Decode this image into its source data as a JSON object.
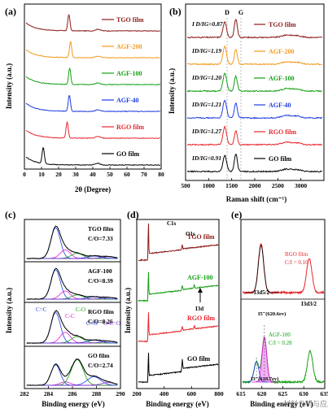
{
  "figure": {
    "panels": [
      {
        "letter": "(a)",
        "type": "xrd",
        "xlabel": "2θ (Degree)",
        "ylabel": "Intensity (a.u.)",
        "xlim": [
          0,
          80
        ],
        "xticks": [
          0,
          10,
          20,
          30,
          40,
          50,
          60,
          70,
          80
        ],
        "curves": [
          {
            "name": "TGO film",
            "color": "#8b1a1a",
            "peak": 26.0
          },
          {
            "name": "AGF-200",
            "color": "#f29a1b",
            "peak": 27.0
          },
          {
            "name": "AGF-100",
            "color": "#14a014",
            "peak": 26.5
          },
          {
            "name": "AGF-40",
            "color": "#1f3de0",
            "peak": 26.3
          },
          {
            "name": "RGO film",
            "color": "#e8262c",
            "peak": 25.0
          },
          {
            "name": "GO film",
            "color": "#000000",
            "peak": 11.0
          }
        ]
      },
      {
        "letter": "(b)",
        "type": "raman",
        "xlabel": "Raman shift (cm⁻¹)",
        "ylabel": "Intensity (a.u.)",
        "xlim": [
          500,
          3500
        ],
        "xticks": [
          500,
          1000,
          1500,
          2000,
          2500,
          3000
        ],
        "peak_labels": [
          "D",
          "G"
        ],
        "curves": [
          {
            "name": "TGO film",
            "ratio": "I D/IG=0.87",
            "color": "#8b1a1a"
          },
          {
            "name": "AGF-200",
            "ratio": "ID/IG=1.19",
            "color": "#f29a1b"
          },
          {
            "name": "AGF-100",
            "ratio": "ID/IG=1.20",
            "color": "#14a014"
          },
          {
            "name": "AGF-40",
            "ratio": "ID/IG=1.21",
            "color": "#1f3de0"
          },
          {
            "name": "RGO film",
            "ratio": "ID/IG=1.27",
            "color": "#e8262c"
          },
          {
            "name": "GO film",
            "ratio": "ID/IG=0.91",
            "color": "#000000"
          }
        ]
      },
      {
        "letter": "(c)",
        "type": "xps_c1s",
        "xlabel": "Binding energy (eV)",
        "ylabel": "Intensity (a.u.)",
        "xlim": [
          282,
          290
        ],
        "xticks": [
          282,
          284,
          286,
          288,
          290
        ],
        "subplots": [
          {
            "name": "TGO film",
            "ratio": "C/O=7.33"
          },
          {
            "name": "AGF-100",
            "ratio": "C/O=8.39"
          },
          {
            "name": "RGO film",
            "ratio": "C/O=8.26"
          },
          {
            "name": "GO film",
            "ratio": "C/O=2.74"
          }
        ],
        "component_labels": [
          "C=C",
          "C-C",
          "C-O",
          "C=O",
          "O-C=O"
        ]
      },
      {
        "letter": "(d)",
        "type": "xps_survey",
        "xlabel": "Binding energy (eV)",
        "ylabel": "Intensity (a.u.)",
        "xlim": [
          200,
          800
        ],
        "xticks": [
          200,
          400,
          600,
          800
        ],
        "peak_labels": [
          "C1s",
          "O1s",
          "I3d"
        ],
        "curves": [
          {
            "name": "TGO film",
            "color": "#8b1a1a"
          },
          {
            "name": "AGF-100",
            "color": "#14a014"
          },
          {
            "name": "RGO film",
            "color": "#e8262c"
          },
          {
            "name": "GO film",
            "color": "#000000"
          }
        ]
      },
      {
        "letter": "(e)",
        "type": "xps_i3d",
        "xlabel": "Binding energy (eV)",
        "xlim": [
          615,
          635
        ],
        "xticks": [
          615,
          620,
          625,
          630,
          635
        ],
        "top": {
          "name": "RGO film",
          "ratio": "C/I = 0.10",
          "label": "I3d5/2",
          "color": "#e8262c"
        },
        "bottom": {
          "name": "AGF-100",
          "ratio": "C/I = 0.28",
          "label": "I3d3/2",
          "color": "#14a014",
          "i5": "I5⁻(620.6ev)",
          "i3": "I3⁻(618.7ev)"
        }
      }
    ],
    "watermark": "材料分析与应用"
  },
  "chart_data": [
    {
      "type": "line",
      "title": "",
      "xlabel": "2θ (Degree)",
      "ylabel": "Intensity (a.u.)",
      "xlim": [
        0,
        80
      ],
      "series": [
        {
          "name": "TGO film",
          "x": [
            5,
            24,
            26,
            28,
            80
          ],
          "y": [
            0.05,
            0.2,
            1.0,
            0.2,
            0.02
          ]
        },
        {
          "name": "AGF-200",
          "x": [
            5,
            25,
            27,
            29,
            80
          ],
          "y": [
            0.05,
            0.2,
            1.0,
            0.2,
            0.02
          ]
        },
        {
          "name": "AGF-100",
          "x": [
            5,
            24.5,
            26.5,
            28.5,
            80
          ],
          "y": [
            0.05,
            0.2,
            1.0,
            0.2,
            0.02
          ]
        },
        {
          "name": "AGF-40",
          "x": [
            5,
            24.3,
            26.3,
            28.3,
            80
          ],
          "y": [
            0.05,
            0.2,
            1.0,
            0.2,
            0.02
          ]
        },
        {
          "name": "RGO film",
          "x": [
            5,
            22,
            25,
            28,
            80
          ],
          "y": [
            0.05,
            0.3,
            1.0,
            0.3,
            0.02
          ]
        },
        {
          "name": "GO film",
          "x": [
            5,
            10,
            11,
            12,
            80
          ],
          "y": [
            0.05,
            0.2,
            1.0,
            0.2,
            0.02
          ]
        }
      ]
    },
    {
      "type": "line",
      "title": "",
      "xlabel": "Raman shift (cm⁻¹)",
      "ylabel": "Intensity (a.u.)",
      "xlim": [
        500,
        3500
      ],
      "series": [
        {
          "name": "TGO film",
          "x": [
            500,
            1350,
            1590,
            2700,
            3300
          ],
          "y": [
            0.05,
            0.85,
            1.0,
            0.15,
            0.05
          ]
        },
        {
          "name": "AGF-200",
          "x": [
            500,
            1350,
            1590,
            2700,
            3300
          ],
          "y": [
            0.05,
            1.0,
            0.85,
            0.15,
            0.05
          ]
        },
        {
          "name": "AGF-100",
          "x": [
            500,
            1350,
            1590,
            2700,
            3300
          ],
          "y": [
            0.05,
            1.0,
            0.85,
            0.15,
            0.05
          ]
        },
        {
          "name": "AGF-40",
          "x": [
            500,
            1350,
            1590,
            2700,
            3300
          ],
          "y": [
            0.05,
            1.0,
            0.83,
            0.15,
            0.05
          ]
        },
        {
          "name": "RGO film",
          "x": [
            500,
            1350,
            1590,
            2700,
            3300
          ],
          "y": [
            0.05,
            1.0,
            0.8,
            0.15,
            0.05
          ]
        },
        {
          "name": "GO film",
          "x": [
            500,
            1350,
            1590,
            2700,
            3300
          ],
          "y": [
            0.05,
            0.9,
            1.0,
            0.15,
            0.05
          ]
        }
      ]
    },
    {
      "type": "line",
      "title": "",
      "xlabel": "Binding energy (eV)",
      "ylabel": "Intensity (a.u.)",
      "xlim": [
        282,
        290
      ],
      "series": [
        {
          "name": "TGO film",
          "x": [
            282,
            284.6,
            286,
            288,
            290
          ],
          "y": [
            0.05,
            1.0,
            0.25,
            0.08,
            0.05
          ]
        },
        {
          "name": "AGF-100",
          "x": [
            282,
            284.6,
            286,
            288,
            290
          ],
          "y": [
            0.05,
            1.0,
            0.25,
            0.08,
            0.05
          ]
        },
        {
          "name": "RGO film",
          "x": [
            282,
            284.6,
            286,
            288,
            290
          ],
          "y": [
            0.05,
            1.0,
            0.3,
            0.1,
            0.05
          ]
        },
        {
          "name": "GO film",
          "x": [
            282,
            284.8,
            286.9,
            288.5,
            290
          ],
          "y": [
            0.05,
            0.9,
            1.0,
            0.3,
            0.05
          ]
        }
      ]
    },
    {
      "type": "line",
      "title": "",
      "xlabel": "Binding energy (eV)",
      "ylabel": "Intensity (a.u.)",
      "xlim": [
        200,
        800
      ],
      "series": [
        {
          "name": "TGO film",
          "x": [
            200,
            285,
            532,
            800
          ],
          "y": [
            0.05,
            1.0,
            0.2,
            0.3
          ]
        },
        {
          "name": "AGF-100",
          "x": [
            200,
            285,
            532,
            620,
            800
          ],
          "y": [
            0.05,
            1.0,
            0.2,
            0.1,
            0.3
          ]
        },
        {
          "name": "RGO film",
          "x": [
            200,
            285,
            532,
            620,
            800
          ],
          "y": [
            0.05,
            1.0,
            0.2,
            0.1,
            0.3
          ]
        },
        {
          "name": "GO film",
          "x": [
            200,
            285,
            532,
            800
          ],
          "y": [
            0.05,
            1.0,
            0.5,
            0.3
          ]
        }
      ]
    },
    {
      "type": "line",
      "title": "",
      "xlabel": "Binding energy (eV)",
      "xlim": [
        615,
        635
      ],
      "series": [
        {
          "name": "RGO film",
          "x": [
            615,
            619.8,
            625,
            631.3,
            635
          ],
          "y": [
            0.05,
            1.0,
            0.1,
            0.7,
            0.05
          ]
        },
        {
          "name": "AGF-100",
          "x": [
            615,
            618.7,
            620.6,
            625,
            631.5,
            635
          ],
          "y": [
            0.05,
            0.5,
            1.0,
            0.1,
            0.6,
            0.05
          ]
        }
      ]
    }
  ]
}
